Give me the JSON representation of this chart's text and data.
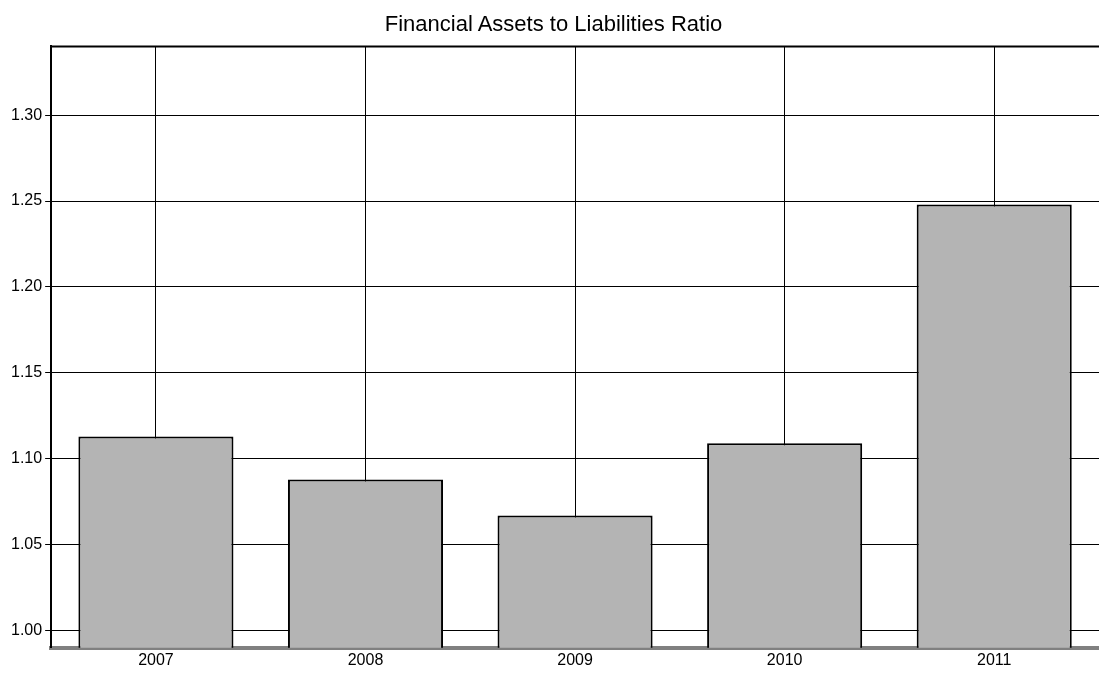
{
  "chart_data": {
    "type": "bar",
    "title": "Financial Assets to Liabilities Ratio",
    "categories": [
      "2007",
      "2008",
      "2009",
      "2010",
      "2011"
    ],
    "values": [
      1.113,
      1.088,
      1.067,
      1.109,
      1.248
    ],
    "color": "#b4b4b4",
    "ylim": [
      0.99,
      1.34
    ],
    "yticks": [
      {
        "value": 1.0,
        "label": "1.00"
      },
      {
        "value": 1.05,
        "label": "1.05"
      },
      {
        "value": 1.1,
        "label": "1.10"
      },
      {
        "value": 1.15,
        "label": "1.15"
      },
      {
        "value": 1.2,
        "label": "1.20"
      },
      {
        "value": 1.25,
        "label": "1.25"
      },
      {
        "value": 1.3,
        "label": "1.30"
      }
    ],
    "grid": true
  }
}
